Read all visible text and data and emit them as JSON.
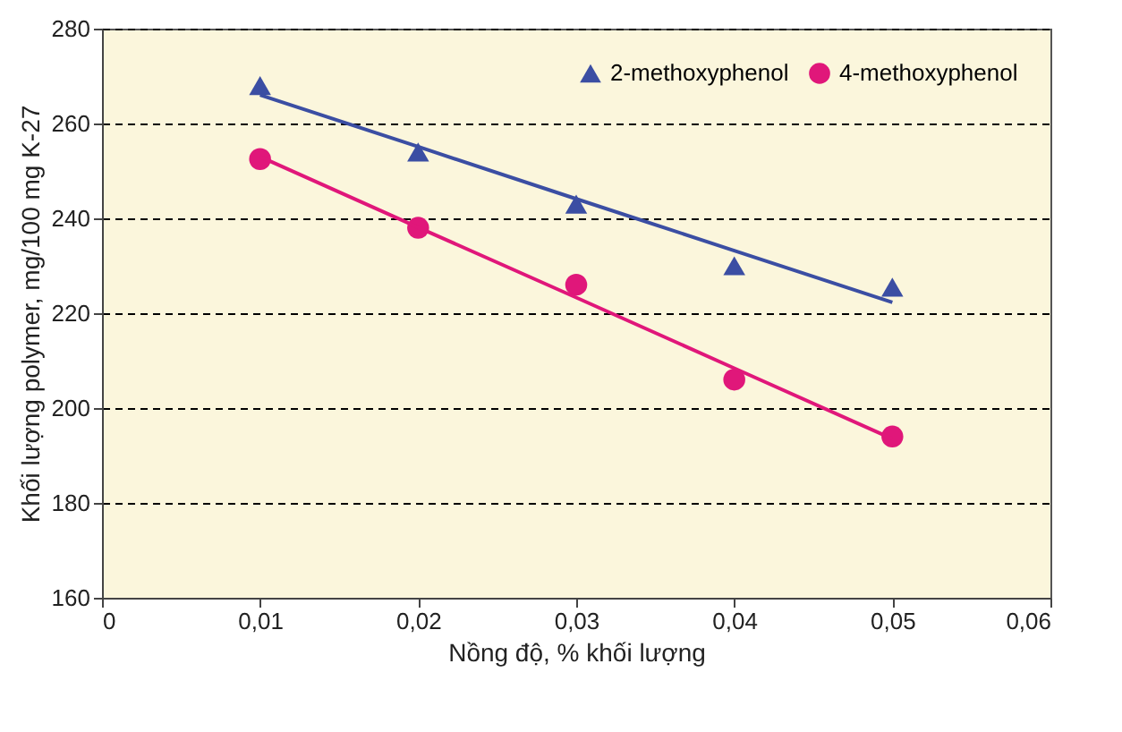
{
  "chart_data": {
    "type": "scatter",
    "xlabel": "Nồng độ, % khối lượng",
    "ylabel": "Khối lượng polymer, mg/100 mg K-27",
    "x": [
      0.01,
      0.02,
      0.03,
      0.04,
      0.05
    ],
    "series": [
      {
        "name": "2-methoxyphenol",
        "color": "#3b4ea3",
        "marker": "triangle",
        "values": [
          268,
          254,
          243,
          230,
          225.5
        ]
      },
      {
        "name": "4-methoxyphenol",
        "color": "#e0177a",
        "marker": "circle",
        "values": [
          252.5,
          238,
          226,
          206,
          194
        ]
      },
      {
        "type": "line",
        "color": "#3b4ea3",
        "values": [
          266,
          255.1,
          244.1,
          233.2,
          222.3
        ]
      },
      {
        "type": "line",
        "color": "#e0177a",
        "values": [
          253,
          238.1,
          223.3,
          208.4,
          193.5
        ]
      }
    ],
    "xlim": [
      0,
      0.06
    ],
    "xticks": [
      0,
      {
        "value": 0.01,
        "label": "0,01"
      },
      {
        "value": 0.02,
        "label": "0,02"
      },
      {
        "value": 0.03,
        "label": "0,03"
      },
      {
        "value": 0.04,
        "label": "0,04"
      },
      {
        "value": 0.05,
        "label": "0,05"
      },
      {
        "value": 0.06,
        "label": "0,06"
      }
    ],
    "ylim": [
      160,
      280
    ],
    "yticks": [
      160,
      180,
      200,
      220,
      240,
      260,
      280
    ],
    "grid": "y",
    "legend": "top right"
  }
}
